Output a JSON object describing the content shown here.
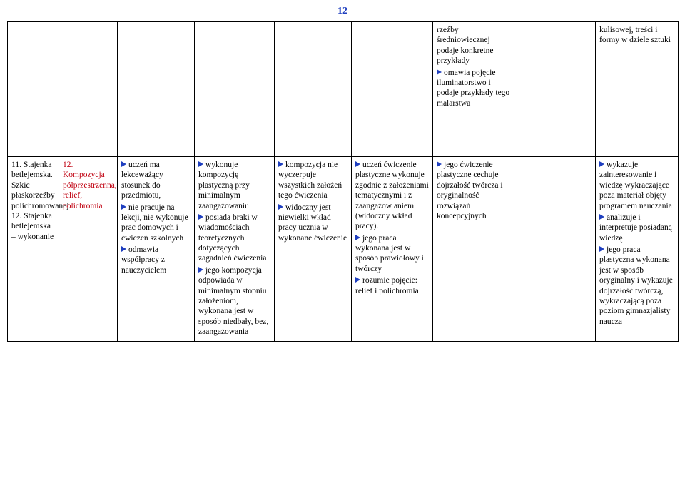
{
  "page_number": "12",
  "row1": {
    "col7_lines": [
      {
        "b": false,
        "t": "rzeźby średniowiecznej podaje konkretne przykłady"
      },
      {
        "b": true,
        "t": "omawia pojęcie iluminatorstwo i podaje przykłady tego malarstwa"
      }
    ],
    "col9_lines": [
      {
        "b": false,
        "t": "kulisowej, treści i formy w dziele sztuki"
      }
    ]
  },
  "row2": {
    "col1": "11. Stajenka betlejemska. Szkic płaskorzeźby polichromowanej. 12. Stajenka betlejemska – wykonanie",
    "col2_pre": "12. Kompozycja półprzestrzenna, relief, polichromia",
    "col3_lines": [
      {
        "b": true,
        "t": "uczeń ma lekceważący stosunek do przedmiotu,"
      },
      {
        "b": true,
        "t": "nie pracuje na lekcji, nie wykonuje prac domowych i ćwiczeń szkolnych"
      },
      {
        "b": true,
        "t": "odmawia współpracy z nauczycielem"
      }
    ],
    "col4_lines": [
      {
        "b": true,
        "t": "wykonuje kompozycję plastyczną przy minimalnym zaangażowaniu"
      },
      {
        "b": true,
        "t": "posiada braki w wiadomościach teoretycznych dotyczących zagadnień ćwiczenia"
      },
      {
        "b": true,
        "t": "jego kompozycja odpowiada w minimalnym stopniu założeniom, wykonana jest w sposób niedbały, bez, zaangażowania"
      }
    ],
    "col5_lines": [
      {
        "b": true,
        "t": "kompozycja nie wyczerpuje wszystkich założeń tego ćwiczenia"
      },
      {
        "b": true,
        "t": "widoczny jest niewielki wkład pracy ucznia w wykonane ćwiczenie"
      }
    ],
    "col6_lines": [
      {
        "b": true,
        "t": "uczeń ćwiczenie plastyczne wykonuje zgodnie z założeniami tematycznymi i z zaangażow aniem (widoczny wkład pracy)."
      },
      {
        "b": true,
        "t": "jego praca wykonana jest w sposób prawidłowy i twórczy"
      },
      {
        "b": true,
        "t": "rozumie pojęcie: relief i polichromia"
      }
    ],
    "col7_lines": [
      {
        "b": true,
        "t": "jego ćwiczenie plastyczne cechuje dojrzałość twórcza i oryginalność rozwiązań koncepcyjnych"
      }
    ],
    "col9_lines": [
      {
        "b": true,
        "t": "wykazuje zainteresowanie i wiedzę wykraczające poza materiał objęty programem nauczania"
      },
      {
        "b": true,
        "t": "analizuje i interpretuje posiadaną wiedzę"
      },
      {
        "b": true,
        "t": "jego praca plastyczna wykonana jest w sposób oryginalny i wykazuje dojrzałość twórczą, wykraczającą poza poziom gimnazjalisty naucza"
      }
    ]
  }
}
